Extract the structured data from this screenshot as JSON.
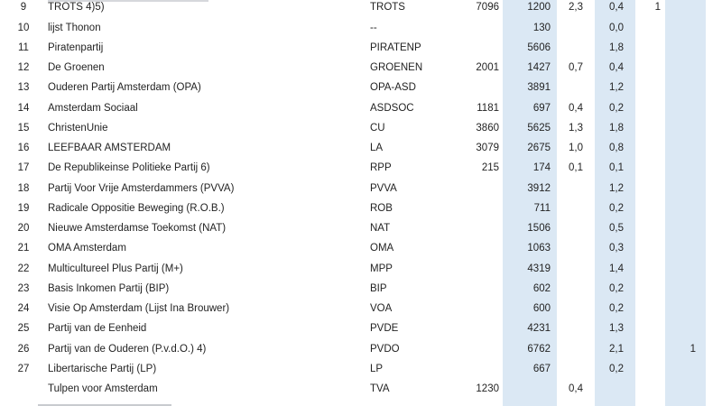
{
  "colors": {
    "highlight_column": "#dbe8f4",
    "text": "#232323",
    "background": "#ffffff"
  },
  "table": {
    "columns": [
      "list-number",
      "party-name",
      "abbreviation",
      "votes-previous",
      "votes-current",
      "percent-previous",
      "percent-current",
      "seats-previous",
      "seats-current"
    ],
    "highlighted_columns": [
      "votes-current",
      "percent-current",
      "seats-current"
    ],
    "rows": [
      {
        "num": "9",
        "name": "TROTS 4)5)",
        "abbr": "TROTS",
        "vprev": "7096",
        "vcur": "1200",
        "pprev": "2,3",
        "pcur": "0,4",
        "sprev": "1",
        "scur": ""
      },
      {
        "num": "10",
        "name": "lijst Thonon",
        "abbr": "--",
        "vprev": "",
        "vcur": "130",
        "pprev": "",
        "pcur": "0,0",
        "sprev": "",
        "scur": ""
      },
      {
        "num": "11",
        "name": "Piratenpartij",
        "abbr": "PIRATENP",
        "vprev": "",
        "vcur": "5606",
        "pprev": "",
        "pcur": "1,8",
        "sprev": "",
        "scur": ""
      },
      {
        "num": "12",
        "name": "De Groenen",
        "abbr": "GROENEN",
        "vprev": "2001",
        "vcur": "1427",
        "pprev": "0,7",
        "pcur": "0,4",
        "sprev": "",
        "scur": ""
      },
      {
        "num": "13",
        "name": "Ouderen Partij Amsterdam (OPA)",
        "abbr": "OPA-ASD",
        "vprev": "",
        "vcur": "3891",
        "pprev": "",
        "pcur": "1,2",
        "sprev": "",
        "scur": ""
      },
      {
        "num": "14",
        "name": "Amsterdam Sociaal",
        "abbr": "ASDSOC",
        "vprev": "1181",
        "vcur": "697",
        "pprev": "0,4",
        "pcur": "0,2",
        "sprev": "",
        "scur": ""
      },
      {
        "num": "15",
        "name": "ChristenUnie",
        "abbr": "CU",
        "vprev": "3860",
        "vcur": "5625",
        "pprev": "1,3",
        "pcur": "1,8",
        "sprev": "",
        "scur": ""
      },
      {
        "num": "16",
        "name": "LEEFBAAR AMSTERDAM",
        "abbr": "LA",
        "vprev": "3079",
        "vcur": "2675",
        "pprev": "1,0",
        "pcur": "0,8",
        "sprev": "",
        "scur": ""
      },
      {
        "num": "17",
        "name": "De Republikeinse Politieke Partij 6)",
        "abbr": "RPP",
        "vprev": "215",
        "vcur": "174",
        "pprev": "0,1",
        "pcur": "0,1",
        "sprev": "",
        "scur": ""
      },
      {
        "num": "18",
        "name": "Partij Voor Vrije Amsterdammers (PVVA)",
        "abbr": "PVVA",
        "vprev": "",
        "vcur": "3912",
        "pprev": "",
        "pcur": "1,2",
        "sprev": "",
        "scur": ""
      },
      {
        "num": "19",
        "name": "Radicale Oppositie Beweging (R.O.B.)",
        "abbr": "ROB",
        "vprev": "",
        "vcur": "711",
        "pprev": "",
        "pcur": "0,2",
        "sprev": "",
        "scur": ""
      },
      {
        "num": "20",
        "name": "Nieuwe Amsterdamse Toekomst (NAT)",
        "abbr": "NAT",
        "vprev": "",
        "vcur": "1506",
        "pprev": "",
        "pcur": "0,5",
        "sprev": "",
        "scur": ""
      },
      {
        "num": "21",
        "name": "OMA Amsterdam",
        "abbr": "OMA",
        "vprev": "",
        "vcur": "1063",
        "pprev": "",
        "pcur": "0,3",
        "sprev": "",
        "scur": ""
      },
      {
        "num": "22",
        "name": "Multicultureel Plus Partij (M+)",
        "abbr": "MPP",
        "vprev": "",
        "vcur": "4319",
        "pprev": "",
        "pcur": "1,4",
        "sprev": "",
        "scur": ""
      },
      {
        "num": "23",
        "name": "Basis Inkomen Partij (BIP)",
        "abbr": "BIP",
        "vprev": "",
        "vcur": "602",
        "pprev": "",
        "pcur": "0,2",
        "sprev": "",
        "scur": ""
      },
      {
        "num": "24",
        "name": "Visie Op Amsterdam (Lijst Ina Brouwer)",
        "abbr": "VOA",
        "vprev": "",
        "vcur": "600",
        "pprev": "",
        "pcur": "0,2",
        "sprev": "",
        "scur": ""
      },
      {
        "num": "25",
        "name": "Partij van de Eenheid",
        "abbr": "PVDE",
        "vprev": "",
        "vcur": "4231",
        "pprev": "",
        "pcur": "1,3",
        "sprev": "",
        "scur": ""
      },
      {
        "num": "26",
        "name": "Partij van de Ouderen (P.v.d.O.) 4)",
        "abbr": "PVDO",
        "vprev": "",
        "vcur": "6762",
        "pprev": "",
        "pcur": "2,1",
        "sprev": "",
        "scur": "1"
      },
      {
        "num": "27",
        "name": "Libertarische Partij (LP)",
        "abbr": "LP",
        "vprev": "",
        "vcur": "667",
        "pprev": "",
        "pcur": "0,2",
        "sprev": "",
        "scur": ""
      },
      {
        "num": "",
        "name": "Tulpen voor Amsterdam",
        "abbr": "TVA",
        "vprev": "1230",
        "vcur": "",
        "pprev": "0,4",
        "pcur": "",
        "sprev": "",
        "scur": ""
      }
    ]
  }
}
